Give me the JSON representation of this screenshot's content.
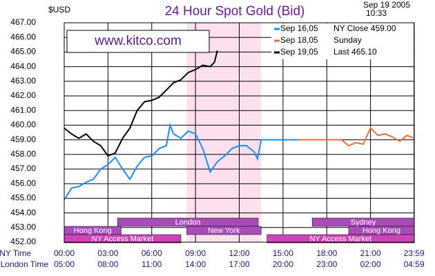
{
  "chart_data": {
    "type": "line",
    "title": "24 Hour Spot Gold (Bid)",
    "y_unit": "$USD",
    "date": "Sep 19 2005",
    "time": "10:33",
    "watermark": "www.kitco.com",
    "xlim": [
      0,
      24
    ],
    "ylim": [
      452,
      467
    ],
    "yticks": [
      {
        "value": 452,
        "label": "452.00"
      },
      {
        "value": 453,
        "label": "453.00"
      },
      {
        "value": 454,
        "label": "454.00"
      },
      {
        "value": 455,
        "label": "455.00"
      },
      {
        "value": 456,
        "label": "456.00"
      },
      {
        "value": 457,
        "label": "457.00"
      },
      {
        "value": 458,
        "label": "458.00"
      },
      {
        "value": 459,
        "label": "459.00"
      },
      {
        "value": 460,
        "label": "460.00"
      },
      {
        "value": 461,
        "label": "461.00"
      },
      {
        "value": 462,
        "label": "462.00"
      },
      {
        "value": 463,
        "label": "463.00"
      },
      {
        "value": 464,
        "label": "464.00"
      },
      {
        "value": 465,
        "label": "465.00"
      },
      {
        "value": 466,
        "label": "466.00"
      },
      {
        "value": 467,
        "label": "467.00"
      }
    ],
    "x_label": "NY Time",
    "xticks": [
      {
        "value": 0,
        "label": "00:00"
      },
      {
        "value": 3,
        "label": "03:00"
      },
      {
        "value": 6,
        "label": "06:00"
      },
      {
        "value": 9,
        "label": "09:00"
      },
      {
        "value": 12,
        "label": "12:00"
      },
      {
        "value": 15,
        "label": "15:00"
      },
      {
        "value": 18,
        "label": "18:00"
      },
      {
        "value": 21,
        "label": "21:00"
      },
      {
        "value": 23.983,
        "label": "23:59"
      }
    ],
    "x2_label": "London Time",
    "x2ticks": [
      {
        "value": 0,
        "label": "05:00"
      },
      {
        "value": 3,
        "label": "08:00"
      },
      {
        "value": 6,
        "label": "11:00"
      },
      {
        "value": 9,
        "label": "14:00"
      },
      {
        "value": 12,
        "label": "17:00"
      },
      {
        "value": 15,
        "label": "20:00"
      },
      {
        "value": 18,
        "label": "23:00"
      },
      {
        "value": 21,
        "label": "02:00"
      },
      {
        "value": 23.983,
        "label": "04:59"
      }
    ],
    "grid": true,
    "legend": "upper right",
    "highlight_span": [
      8.4,
      13.5
    ],
    "sessions": [
      {
        "name": "London",
        "start": 3.65,
        "end": 13.3,
        "row": 0
      },
      {
        "name": "Sydney",
        "start": 17,
        "end": 24,
        "row": 0
      },
      {
        "name": "Hong Kong",
        "start": 0,
        "end": 3.9,
        "row": 1
      },
      {
        "name": "New York",
        "start": 8.4,
        "end": 13.5,
        "row": 1
      },
      {
        "name": "Hong Kong",
        "start": 19.5,
        "end": 24,
        "row": 1
      },
      {
        "name": "NY Access Market",
        "start": 0,
        "end": 8,
        "row": 2
      },
      {
        "name": "NY Access Market",
        "start": 13.9,
        "end": 24,
        "row": 2
      }
    ],
    "series": [
      {
        "name": "Sep 16,05",
        "note": "NY Close 459.00",
        "color": "#1a8cff",
        "x": [
          0,
          0.5,
          1,
          1.5,
          2,
          2.5,
          3,
          3.5,
          4,
          4.5,
          5,
          5.5,
          6,
          6.5,
          7,
          7.25,
          7.5,
          8,
          8.5,
          9,
          9.5,
          10,
          10.5,
          11,
          11.5,
          12,
          12.5,
          13,
          13.25,
          13.5,
          14,
          15,
          16
        ],
        "values": [
          454.9,
          455.7,
          455.8,
          456.1,
          456.3,
          457.0,
          457.3,
          457.8,
          457.0,
          456.3,
          457.2,
          457.8,
          457.9,
          458.4,
          458.6,
          460.0,
          459.4,
          459.1,
          459.6,
          459.4,
          458.4,
          456.8,
          457.5,
          457.9,
          458.4,
          458.6,
          458.6,
          458.2,
          457.7,
          459.0,
          459.0,
          459.0,
          459.0
        ]
      },
      {
        "name": "Sep 18,05",
        "note": "Sunday",
        "color": "#e8703a",
        "x": [
          16,
          17,
          18,
          19,
          19.5,
          20,
          20.5,
          21,
          21.5,
          22,
          22.5,
          23,
          23.5,
          23.99
        ],
        "values": [
          459.0,
          459.0,
          459.0,
          459.0,
          458.6,
          458.8,
          458.7,
          459.8,
          459.3,
          459.4,
          459.2,
          458.9,
          459.3,
          459.1
        ]
      },
      {
        "name": "Sep 19,05",
        "note": "Last 465.10",
        "color": "#000000",
        "x": [
          0,
          0.5,
          1,
          1.5,
          2,
          2.5,
          3,
          3.5,
          4,
          4.5,
          5,
          5.5,
          6,
          6.5,
          7,
          7.5,
          8,
          8.5,
          9,
          9.5,
          10,
          10.3,
          10.5
        ],
        "values": [
          459.8,
          459.4,
          459.1,
          459.4,
          458.9,
          458.6,
          457.9,
          458.1,
          459.1,
          459.8,
          461.0,
          461.6,
          461.7,
          461.9,
          462.4,
          462.9,
          463.1,
          463.6,
          463.8,
          464.1,
          464.0,
          464.3,
          465.1
        ]
      }
    ]
  }
}
